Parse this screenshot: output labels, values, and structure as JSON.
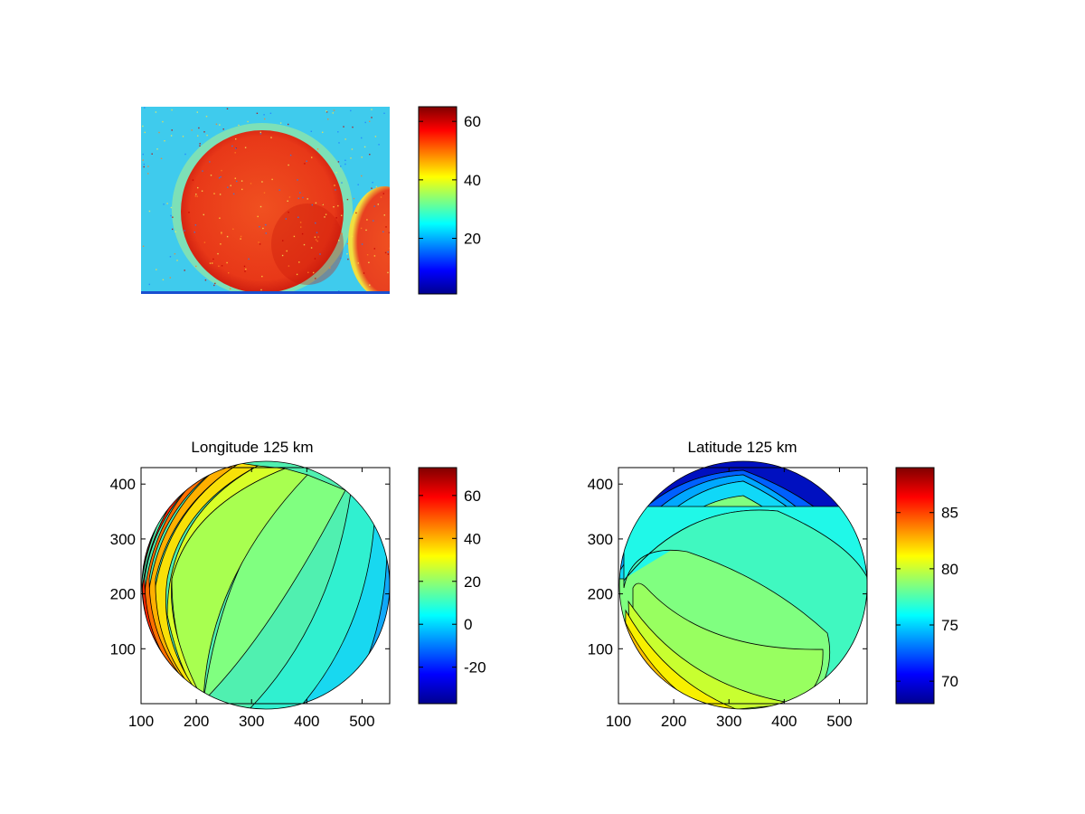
{
  "figure": {
    "background": "#ffffff",
    "colormap": "jet"
  },
  "chart_data": [
    {
      "id": "image",
      "type": "heatmap",
      "title": "",
      "description_of_content": "false-colour detector image: bright circular disk on cooler background, second disk partly visible at right edge",
      "header_text": "",
      "axes_visible": false,
      "colorbar": {
        "range": [
          1,
          65
        ],
        "ticks": [
          20,
          40,
          60
        ]
      }
    },
    {
      "id": "longitude",
      "type": "heatmap",
      "style": "filled-contour",
      "title": "Longitude 125 km",
      "xlim": [
        100,
        550
      ],
      "ylim": [
        0,
        430
      ],
      "xticks": [
        100,
        200,
        300,
        400,
        500
      ],
      "yticks": [
        100,
        200,
        300,
        400
      ],
      "disk": {
        "cx": 325,
        "cy": 210,
        "r": 222
      },
      "contour_levels": [
        -20,
        -10,
        0,
        10,
        20,
        30,
        40,
        50,
        60
      ],
      "colorbar": {
        "range": [
          -37,
          73
        ],
        "ticks": [
          -20,
          0,
          20,
          40,
          60
        ]
      }
    },
    {
      "id": "latitude",
      "type": "heatmap",
      "style": "filled-contour",
      "title": "Latitude 125 km",
      "xlim": [
        100,
        550
      ],
      "ylim": [
        0,
        430
      ],
      "xticks": [
        100,
        200,
        300,
        400,
        500
      ],
      "yticks": [
        100,
        200,
        300,
        400
      ],
      "disk": {
        "cx": 325,
        "cy": 210,
        "r": 222
      },
      "contour_levels": [
        70,
        72,
        74,
        75,
        76,
        77,
        78,
        79,
        80,
        81,
        82,
        83,
        84,
        85,
        86
      ],
      "colorbar": {
        "range": [
          68,
          89
        ],
        "ticks": [
          70,
          75,
          80,
          85
        ]
      }
    }
  ]
}
